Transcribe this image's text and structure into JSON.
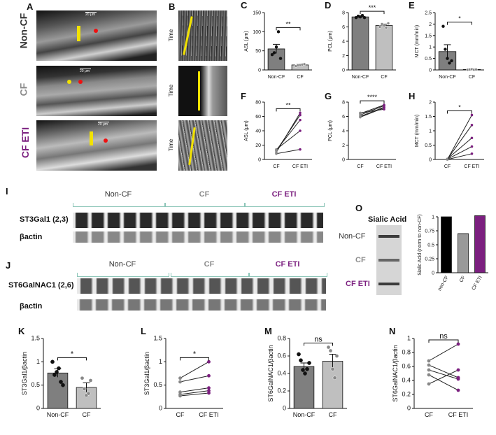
{
  "panels": {
    "A": {
      "letter": "A",
      "rows": [
        {
          "label": "Non-CF",
          "scale": "20 μm"
        },
        {
          "label": "CF",
          "scale": "20 μm"
        },
        {
          "label": "CF ETI",
          "scale": "20 μm"
        }
      ]
    },
    "B": {
      "letter": "B",
      "axis": "Time"
    },
    "C": {
      "letter": "C",
      "ylabel": "ASL (μm)",
      "cats": [
        "Non-CF",
        "CF"
      ],
      "sig": "**"
    },
    "D": {
      "letter": "D",
      "ylabel": "PCL (μm)",
      "cats": [
        "Non-CF",
        "CF"
      ],
      "sig": "***"
    },
    "E": {
      "letter": "E",
      "ylabel": "MCT (mm/min)",
      "cats": [
        "Non-CF",
        "CF"
      ],
      "sig": "*"
    },
    "F": {
      "letter": "F",
      "ylabel": "ASL (μm)",
      "cats": [
        "CF",
        "CF ETI"
      ],
      "sig": "**"
    },
    "G": {
      "letter": "G",
      "ylabel": "PCL (μm)",
      "cats": [
        "CF",
        "CF ETI"
      ],
      "sig": "****"
    },
    "H": {
      "letter": "H",
      "ylabel": "MCT (mm/min)",
      "cats": [
        "CF",
        "CF ETI"
      ],
      "sig": "*"
    },
    "I": {
      "letter": "I",
      "groups": [
        "Non-CF",
        "CF",
        "CF ETI"
      ],
      "bands": [
        "ST3Gal1 (2,3)",
        "βactin"
      ]
    },
    "J": {
      "letter": "J",
      "groups": [
        "Non-CF",
        "CF",
        "CF ETI"
      ],
      "bands": [
        "ST6GalNAC1 (2,6)",
        "βactin"
      ]
    },
    "O": {
      "letter": "O",
      "title": "Sialic Acid",
      "rows": [
        "Non-CF",
        "CF",
        "CF ETI"
      ],
      "ylabel": "Sialic Acid (norm to non-CF)",
      "cats": [
        "non-CF",
        "CF",
        "CF ETI"
      ]
    },
    "K": {
      "letter": "K",
      "ylabel": "ST3Gal1/βactin",
      "cats": [
        "Non-CF",
        "CF"
      ],
      "sig": "*"
    },
    "L": {
      "letter": "L",
      "ylabel": "ST3Gal1/βactin",
      "cats": [
        "CF",
        "CF ETI"
      ],
      "sig": "*"
    },
    "M": {
      "letter": "M",
      "ylabel": "ST6GalNAC1/βactin",
      "cats": [
        "Non-CF",
        "CF"
      ],
      "sig": "ns"
    },
    "N": {
      "letter": "N",
      "ylabel": "ST6GalNAC1/βactin",
      "cats": [
        "CF",
        "CF ETI"
      ],
      "sig": "ns"
    }
  },
  "chart_data": [
    {
      "id": "C",
      "type": "bar",
      "categories": [
        "Non-CF",
        "CF"
      ],
      "values": [
        55,
        13
      ],
      "errors": [
        12,
        2
      ],
      "points": [
        [
          40,
          45,
          60,
          100,
          30
        ],
        [
          10,
          12,
          13,
          14,
          15
        ]
      ],
      "ylim": [
        0,
        150
      ],
      "ticks": [
        0,
        50,
        100,
        150
      ],
      "ylabel": "ASL (μm)",
      "colors": [
        "#7f7f7f",
        "#bfbfbf"
      ]
    },
    {
      "id": "D",
      "type": "bar",
      "categories": [
        "Non-CF",
        "CF"
      ],
      "values": [
        7.4,
        6.2
      ],
      "errors": [
        0.15,
        0.2
      ],
      "points": [
        [
          7.3,
          7.5,
          7.4,
          7.6,
          7.3
        ],
        [
          6.0,
          6.4,
          6.2,
          5.9,
          6.5
        ]
      ],
      "ylim": [
        0,
        8
      ],
      "ticks": [
        0,
        2,
        4,
        6,
        8
      ],
      "ylabel": "PCL (μm)",
      "colors": [
        "#7f7f7f",
        "#bfbfbf"
      ]
    },
    {
      "id": "E",
      "type": "bar",
      "categories": [
        "Non-CF",
        "CF"
      ],
      "values": [
        0.8,
        0.02
      ],
      "errors": [
        0.3,
        0.01
      ],
      "points": [
        [
          1.9,
          0.9,
          0.5,
          0.3,
          0.4
        ],
        [
          0.01,
          0.02,
          0.03,
          0.01,
          0.02
        ]
      ],
      "ylim": [
        0,
        2.5
      ],
      "ticks": [
        0,
        0.5,
        1.0,
        1.5,
        2.0,
        2.5
      ],
      "ylabel": "MCT (mm/min)",
      "colors": [
        "#7f7f7f",
        "#bfbfbf"
      ]
    },
    {
      "id": "F",
      "type": "line",
      "categories": [
        "CF",
        "CF ETI"
      ],
      "pairs": [
        [
          10,
          65
        ],
        [
          12,
          62
        ],
        [
          13,
          55
        ],
        [
          14,
          40
        ],
        [
          8,
          14
        ]
      ],
      "ylim": [
        0,
        80
      ],
      "ticks": [
        0,
        20,
        40,
        60,
        80
      ],
      "ylabel": "ASL (μm)"
    },
    {
      "id": "G",
      "type": "line",
      "categories": [
        "CF",
        "CF ETI"
      ],
      "pairs": [
        [
          5.9,
          7.2
        ],
        [
          6.2,
          7.5
        ],
        [
          6.4,
          7.6
        ],
        [
          6.0,
          7.3
        ],
        [
          6.5,
          7.0
        ]
      ],
      "ylim": [
        0,
        8
      ],
      "ticks": [
        0,
        2,
        4,
        6,
        8
      ],
      "ylabel": "PCL (μm)"
    },
    {
      "id": "H",
      "type": "line",
      "categories": [
        "CF",
        "CF ETI"
      ],
      "pairs": [
        [
          0.0,
          1.55
        ],
        [
          0.01,
          1.2
        ],
        [
          0.02,
          0.75
        ],
        [
          0.01,
          0.45
        ],
        [
          0.0,
          0.2
        ]
      ],
      "ylim": [
        0,
        2.0
      ],
      "ticks": [
        0,
        0.5,
        1.0,
        1.5,
        2.0
      ],
      "ylabel": "MCT (mm/min)"
    },
    {
      "id": "O",
      "type": "bar",
      "categories": [
        "non-CF",
        "CF",
        "CF ETI"
      ],
      "values": [
        1.0,
        0.7,
        1.02
      ],
      "ylim": [
        0,
        1.0
      ],
      "ticks": [
        0,
        0.25,
        0.5,
        0.75,
        1.0
      ],
      "ylabel": "Sialic Acid (norm to non-CF)",
      "colors": [
        "#000000",
        "#999999",
        "#7b1f7f"
      ]
    },
    {
      "id": "K",
      "type": "bar",
      "categories": [
        "Non-CF",
        "CF"
      ],
      "values": [
        0.76,
        0.45
      ],
      "errors": [
        0.09,
        0.1
      ],
      "points": [
        [
          1.0,
          0.72,
          0.78,
          0.86,
          0.57,
          0.5
        ],
        [
          0.65,
          0.42,
          0.28,
          0.32,
          0.6
        ]
      ],
      "ylim": [
        0,
        1.5
      ],
      "ticks": [
        0,
        0.5,
        1.0,
        1.5
      ],
      "ylabel": "ST3Gal1/βactin",
      "colors": [
        "#7f7f7f",
        "#bfbfbf"
      ]
    },
    {
      "id": "L",
      "type": "line",
      "categories": [
        "CF",
        "CF ETI"
      ],
      "pairs": [
        [
          0.65,
          1.0
        ],
        [
          0.57,
          0.7
        ],
        [
          0.35,
          0.44
        ],
        [
          0.3,
          0.38
        ],
        [
          0.27,
          0.33
        ]
      ],
      "ylim": [
        0,
        1.5
      ],
      "ticks": [
        0,
        0.5,
        1.0,
        1.5
      ],
      "ylabel": "ST3Gal1/βactin"
    },
    {
      "id": "M",
      "type": "bar",
      "categories": [
        "Non-CF",
        "CF"
      ],
      "values": [
        0.48,
        0.54
      ],
      "errors": [
        0.04,
        0.08
      ],
      "points": [
        [
          0.62,
          0.55,
          0.44,
          0.4,
          0.45,
          0.52
        ],
        [
          0.7,
          0.66,
          0.45,
          0.35,
          0.6
        ]
      ],
      "ylim": [
        0,
        0.8
      ],
      "ticks": [
        0,
        0.2,
        0.4,
        0.6,
        0.8
      ],
      "ylabel": "ST6GalNAC1/βactin",
      "colors": [
        "#7f7f7f",
        "#bfbfbf"
      ]
    },
    {
      "id": "N",
      "type": "line",
      "categories": [
        "CF",
        "CF ETI"
      ],
      "pairs": [
        [
          0.68,
          0.92
        ],
        [
          0.62,
          0.44
        ],
        [
          0.55,
          0.42
        ],
        [
          0.48,
          0.26
        ],
        [
          0.35,
          0.55
        ]
      ],
      "ylim": [
        0,
        1.0
      ],
      "ticks": [
        0,
        0.2,
        0.4,
        0.6,
        0.8,
        1.0
      ],
      "ylabel": "ST6GalNAC1/βactin"
    }
  ]
}
